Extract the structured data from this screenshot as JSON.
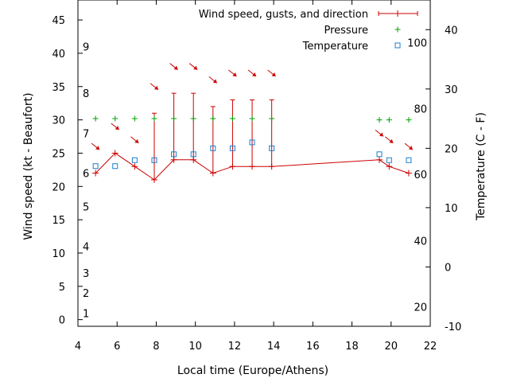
{
  "chart_data": {
    "type": "line",
    "xlabel": "Local time (Europe/Athens)",
    "ylabel": "Wind speed (kt - Beaufort)",
    "y2label": "Temperature (C - F)",
    "xlim": [
      4,
      22
    ],
    "ylim": [
      -1,
      48
    ],
    "y2lim": [
      -10,
      45
    ],
    "xticks": [
      4,
      6,
      8,
      10,
      12,
      14,
      16,
      18,
      20,
      22
    ],
    "yticks": [
      0,
      5,
      10,
      15,
      20,
      25,
      30,
      35,
      40,
      45
    ],
    "y2ticks": [
      -10,
      0,
      10,
      20,
      30,
      40
    ],
    "beaufort_labels": [
      {
        "label": "1",
        "kt": 1
      },
      {
        "label": "2",
        "kt": 4
      },
      {
        "label": "3",
        "kt": 7
      },
      {
        "label": "4",
        "kt": 11
      },
      {
        "label": "5",
        "kt": 17
      },
      {
        "label": "6",
        "kt": 22
      },
      {
        "label": "7",
        "kt": 28
      },
      {
        "label": "8",
        "kt": 34
      },
      {
        "label": "9",
        "kt": 41
      }
    ],
    "fahrenheit_labels": [
      {
        "label": "20",
        "celsius": -6.7
      },
      {
        "label": "40",
        "celsius": 4.4
      },
      {
        "label": "60",
        "celsius": 15.6
      },
      {
        "label": "80",
        "celsius": 26.7
      },
      {
        "label": "100",
        "celsius": 37.8
      }
    ],
    "legend_position": "top-right",
    "colors": {
      "wind": "#cc0000",
      "pressure": "#00a000",
      "temperature": "#1a7fd0"
    },
    "series": [
      {
        "name": "Wind speed, gusts, and direction",
        "x": [
          4.9,
          5.9,
          6.9,
          7.9,
          8.9,
          9.9,
          10.9,
          11.9,
          12.9,
          13.9,
          19.4,
          19.9,
          20.9
        ],
        "speed": [
          22,
          25,
          23,
          21,
          24,
          24,
          22,
          23,
          23,
          23,
          24,
          23,
          22
        ],
        "gust": [
          22,
          25,
          23,
          31,
          34,
          34,
          32,
          33,
          33,
          33,
          24,
          23,
          22
        ],
        "arrow_y": [
          26,
          29,
          27,
          35,
          38,
          38,
          36,
          37,
          37,
          37,
          28,
          27,
          26
        ]
      },
      {
        "name": "Pressure",
        "x": [
          4.9,
          5.9,
          6.9,
          7.9,
          8.9,
          9.9,
          10.9,
          11.9,
          12.9,
          13.9,
          19.4,
          19.9,
          20.9
        ],
        "values": [
          30.2,
          30.2,
          30.2,
          30.2,
          30.2,
          30.2,
          30.2,
          30.2,
          30.2,
          30.2,
          30.0,
          30.0,
          30.0
        ]
      },
      {
        "name": "Temperature",
        "x": [
          4.9,
          5.9,
          6.9,
          7.9,
          8.9,
          9.9,
          10.9,
          11.9,
          12.9,
          13.9,
          19.4,
          19.9,
          20.9
        ],
        "values": [
          17,
          17,
          18,
          18,
          19,
          19,
          20,
          20,
          21,
          20,
          19,
          18,
          18
        ]
      }
    ]
  }
}
